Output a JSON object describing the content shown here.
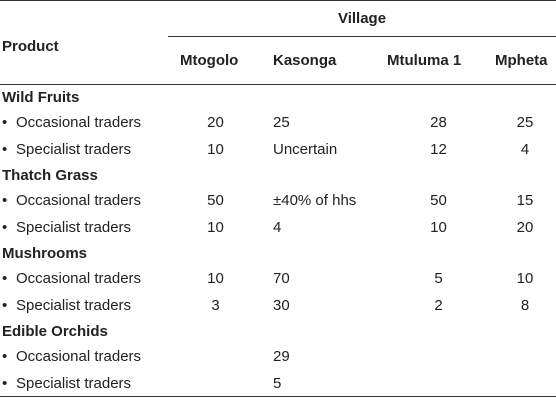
{
  "header": {
    "product": "Product",
    "village": "Village",
    "columns": [
      "Mtogolo",
      "Kasonga",
      "Mtuluma 1",
      "Mpheta"
    ]
  },
  "bullet": "•",
  "groups": [
    {
      "name": "Wild Fruits",
      "rows": [
        {
          "label": "Occasional traders",
          "values": [
            "20",
            "25",
            "28",
            "25"
          ]
        },
        {
          "label": "Specialist traders",
          "values": [
            "10",
            "Uncertain",
            "12",
            "4"
          ]
        }
      ]
    },
    {
      "name": "Thatch Grass",
      "rows": [
        {
          "label": "Occasional traders",
          "values": [
            "50",
            "±40% of hhs",
            "50",
            "15"
          ]
        },
        {
          "label": "Specialist traders",
          "values": [
            "10",
            "4",
            "10",
            "20"
          ]
        }
      ]
    },
    {
      "name": "Mushrooms",
      "rows": [
        {
          "label": "Occasional traders",
          "values": [
            "10",
            "70",
            "5",
            "10"
          ]
        },
        {
          "label": "Specialist traders",
          "values": [
            "3",
            "30",
            "2",
            "8"
          ]
        }
      ]
    },
    {
      "name": "Edible Orchids",
      "rows": [
        {
          "label": "Occasional traders",
          "values": [
            "",
            "29",
            "",
            ""
          ]
        },
        {
          "label": "Specialist traders",
          "values": [
            "",
            "5",
            "",
            ""
          ]
        }
      ]
    }
  ]
}
